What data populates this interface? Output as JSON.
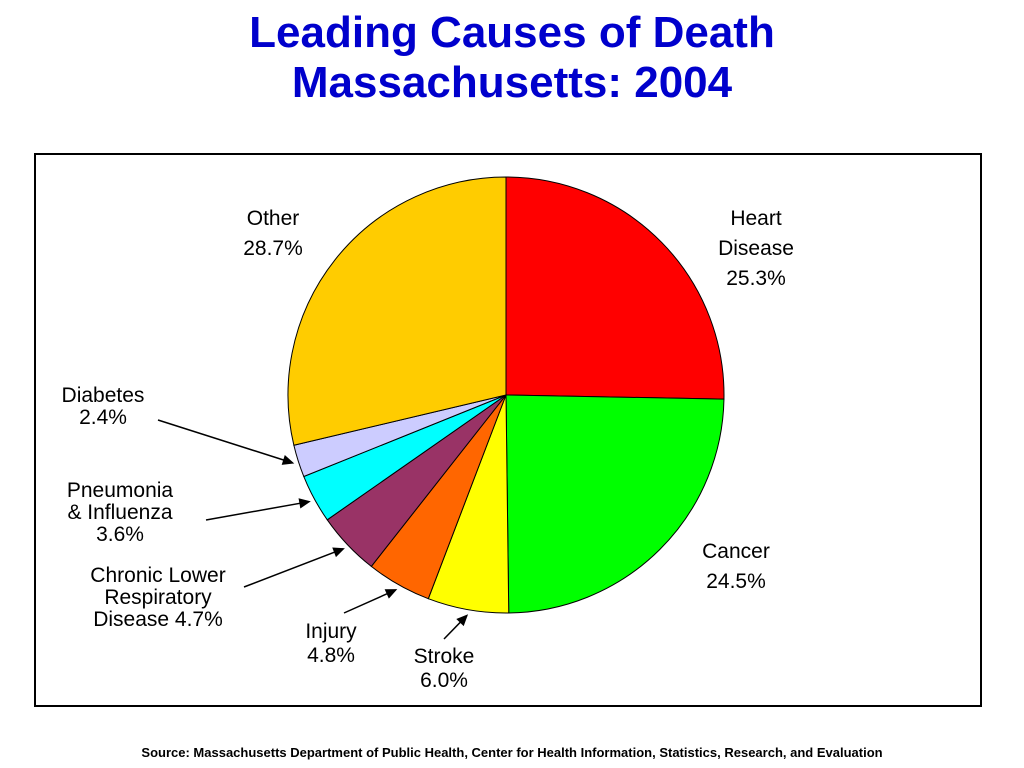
{
  "chart_data": {
    "type": "pie",
    "title_line1": "Leading Causes of Death",
    "title_line2": "Massachusetts: 2004",
    "slices": [
      {
        "label": [
          "Heart",
          "Disease"
        ],
        "value_text": "25.3%",
        "value": 25.3,
        "color": "#ff0000"
      },
      {
        "label": [
          "Cancer"
        ],
        "value_text": "24.5%",
        "value": 24.5,
        "color": "#00ff00"
      },
      {
        "label": [
          "Stroke"
        ],
        "value_text": "6.0%",
        "value": 6.0,
        "color": "#ffff00"
      },
      {
        "label": [
          "Injury"
        ],
        "value_text": "4.8%",
        "value": 4.8,
        "color": "#ff6600"
      },
      {
        "label": [
          "Chronic Lower",
          "Respiratory",
          "Disease 4.7%"
        ],
        "value_text": "",
        "value": 4.7,
        "color": "#993366"
      },
      {
        "label": [
          "Pneumonia",
          "& Influenza"
        ],
        "value_text": "3.6%",
        "value": 3.6,
        "color": "#00ffff"
      },
      {
        "label": [
          "Diabetes"
        ],
        "value_text": "2.4%",
        "value": 2.4,
        "color": "#ccccff"
      },
      {
        "label": [
          "Other"
        ],
        "value_text": "28.7%",
        "value": 28.7,
        "color": "#ffcc00"
      }
    ]
  },
  "source": "Source:  Massachusetts Department of Public Health, Center for Health Information, Statistics, Research, and Evaluation"
}
